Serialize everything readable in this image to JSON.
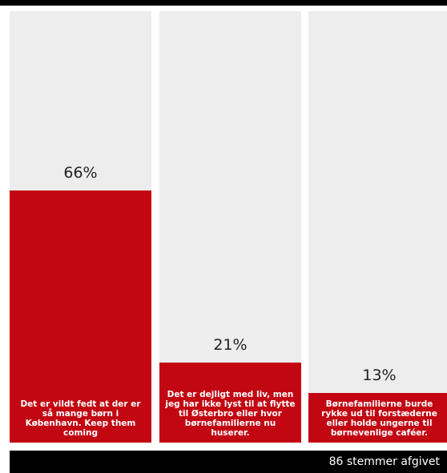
{
  "colors": {
    "bar_fill": "#c20712",
    "bar_track": "#ededed",
    "frame": "#000000"
  },
  "footer": {
    "votes_text": "86 stemmer afgivet"
  },
  "chart_data": {
    "type": "bar",
    "categories": [
      "Det er vildt fedt at der er så mange børn i København. Keep them coming",
      "Det er dejligt med liv, men jeg har ikke lyst til at flytte til Østerbro eller hvor børnefamilierne nu huserer.",
      "Børnefamilierne burde rykke ud til forstæderne eller holde ungerne til børnevenlige caféer."
    ],
    "values": [
      66,
      21,
      13
    ],
    "value_labels": [
      "66%",
      "21%",
      "13%"
    ],
    "unit": "%",
    "ylim": [
      0,
      100
    ],
    "grid": false,
    "legend": "none"
  }
}
